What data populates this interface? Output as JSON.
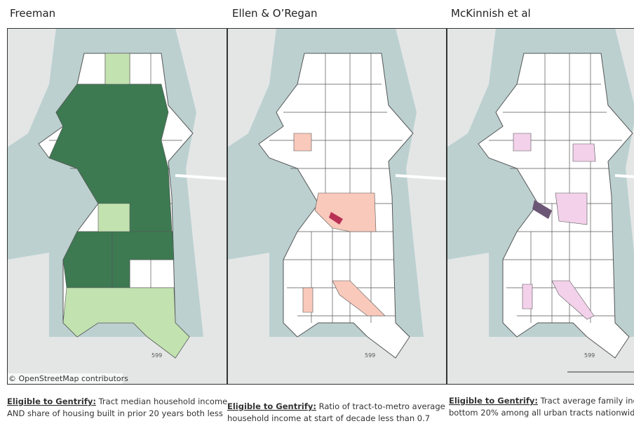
{
  "panels": [
    {
      "title": "Freeman",
      "attribution": "© OpenStreetMap contributors",
      "road": "599",
      "label": "Eligible to Gentrify:",
      "lines": [
        " Tract median household income",
        "AND share of housing built in prior 20 years both less"
      ]
    },
    {
      "title": "Ellen & O’Regan",
      "road": "599",
      "label": "Eligible to Gentrify:",
      "lines": [
        " Ratio of tract-to-metro average",
        "household income at start of decade less than 0.7"
      ]
    },
    {
      "title": "McKinnish et al",
      "road": "599",
      "label": "Eligible to Gentrify:",
      "lines": [
        " Tract average family incom",
        "bottom 20% among all urban tracts nationwide"
      ]
    }
  ]
}
